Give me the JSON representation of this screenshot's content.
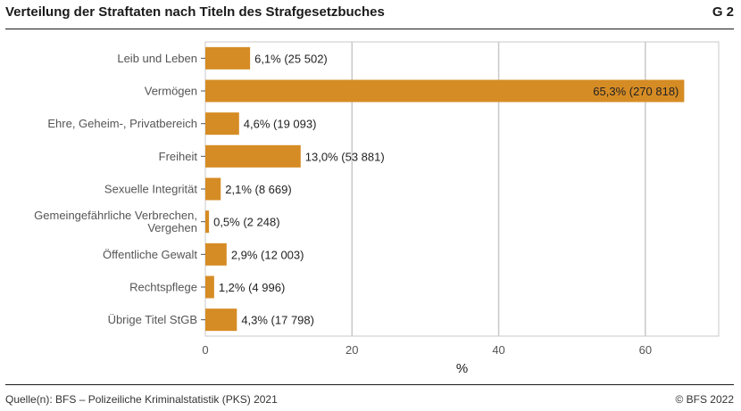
{
  "header": {
    "title": "Verteilung der Straftaten nach Titeln des Strafgesetzbuches",
    "figure_id": "G 2"
  },
  "footer": {
    "source": "Quelle(n): BFS – Polizeiliche Kriminalstatistik (PKS) 2021",
    "copyright": "© BFS 2022"
  },
  "colors": {
    "bar": "#d68c24",
    "grid": "#c8c8c8",
    "label": "#555555"
  },
  "chart_data": {
    "type": "bar",
    "orientation": "horizontal",
    "categories": [
      [
        "Leib und Leben"
      ],
      [
        "Vermögen"
      ],
      [
        "Ehre, Geheim-, Privatbereich"
      ],
      [
        "Freiheit"
      ],
      [
        "Sexuelle Integrität"
      ],
      [
        "Gemeingefährliche Verbrechen,",
        "Vergehen"
      ],
      [
        "Öffentliche Gewalt"
      ],
      [
        "Rechtspflege"
      ],
      [
        "Übrige Titel StGB"
      ]
    ],
    "values": [
      6.1,
      65.3,
      4.6,
      13.0,
      2.1,
      0.5,
      2.9,
      1.2,
      4.3
    ],
    "data_labels": [
      "6,1% (25 502)",
      "65,3% (270 818)",
      "4,6% (19 093)",
      "13,0% (53 881)",
      "2,1% (8 669)",
      "0,5% (2 248)",
      "2,9% (12 003)",
      "1,2% (4 996)",
      "4,3% (17 798)"
    ],
    "x_ticks": [
      0,
      20,
      40,
      60
    ],
    "x_tick_labels": [
      "0",
      "20",
      "40",
      "60"
    ],
    "xlim": [
      0,
      70
    ],
    "xlabel": "%",
    "grid": true,
    "legend": "none"
  }
}
